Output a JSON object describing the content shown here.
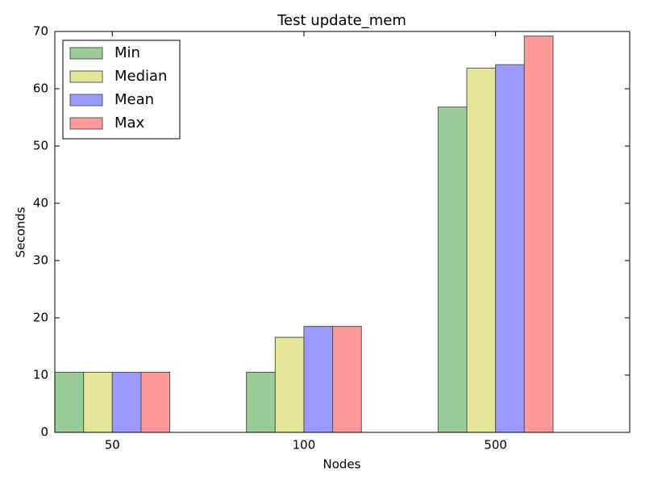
{
  "chart_data": {
    "type": "bar",
    "title": "Test update_mem",
    "x_label": "Nodes",
    "y_label": "Seconds",
    "categories": [
      "50",
      "100",
      "500"
    ],
    "series": [
      {
        "name": "Min",
        "color": "#99cc99",
        "values": [
          10.5,
          10.5,
          56.8
        ]
      },
      {
        "name": "Median",
        "color": "#e5e599",
        "values": [
          10.5,
          16.6,
          63.6
        ]
      },
      {
        "name": "Mean",
        "color": "#9999ff",
        "values": [
          10.5,
          18.5,
          64.2
        ]
      },
      {
        "name": "Max",
        "color": "#ff9999",
        "values": [
          10.5,
          18.5,
          69.2
        ]
      }
    ],
    "ylim": [
      0,
      70
    ],
    "yticks": [
      0,
      10,
      20,
      30,
      40,
      50,
      60,
      70
    ],
    "grid": false,
    "legend": "upper left"
  }
}
